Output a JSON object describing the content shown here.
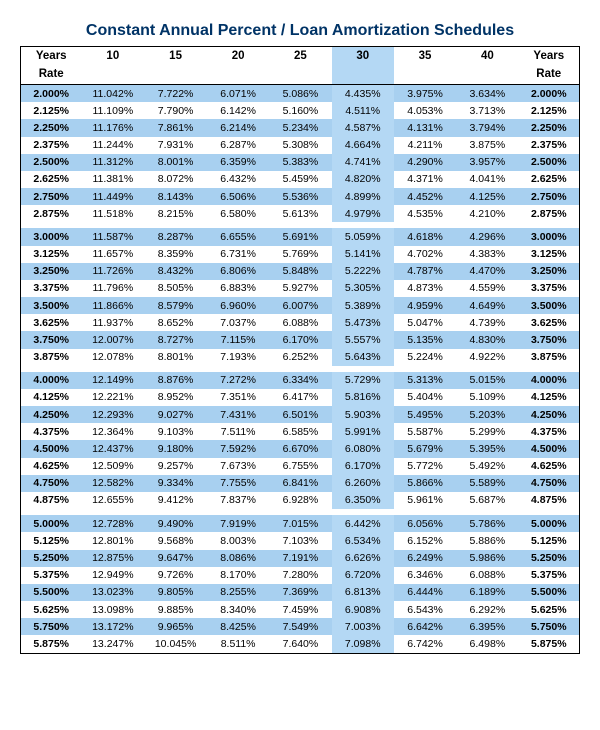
{
  "title": "Constant Annual Percent / Loan Amortization Schedules",
  "columns": [
    "Years",
    "10",
    "15",
    "20",
    "25",
    "30",
    "35",
    "40",
    "Years"
  ],
  "rate_label": "Rate",
  "highlight_column_index": 5,
  "colors": {
    "band": "#a8d0f0",
    "highlight": "#b4d8f4",
    "title": "#003366",
    "border": "#000000",
    "bg": "#ffffff"
  },
  "groups": [
    [
      {
        "rate": "2.000%",
        "v": [
          "11.042%",
          "7.722%",
          "6.071%",
          "5.086%",
          "4.435%",
          "3.975%",
          "3.634%"
        ]
      },
      {
        "rate": "2.125%",
        "v": [
          "11.109%",
          "7.790%",
          "6.142%",
          "5.160%",
          "4.511%",
          "4.053%",
          "3.713%"
        ]
      },
      {
        "rate": "2.250%",
        "v": [
          "11.176%",
          "7.861%",
          "6.214%",
          "5.234%",
          "4.587%",
          "4.131%",
          "3.794%"
        ]
      },
      {
        "rate": "2.375%",
        "v": [
          "11.244%",
          "7.931%",
          "6.287%",
          "5.308%",
          "4.664%",
          "4.211%",
          "3.875%"
        ]
      },
      {
        "rate": "2.500%",
        "v": [
          "11.312%",
          "8.001%",
          "6.359%",
          "5.383%",
          "4.741%",
          "4.290%",
          "3.957%"
        ]
      },
      {
        "rate": "2.625%",
        "v": [
          "11.381%",
          "8.072%",
          "6.432%",
          "5.459%",
          "4.820%",
          "4.371%",
          "4.041%"
        ]
      },
      {
        "rate": "2.750%",
        "v": [
          "11.449%",
          "8.143%",
          "6.506%",
          "5.536%",
          "4.899%",
          "4.452%",
          "4.125%"
        ]
      },
      {
        "rate": "2.875%",
        "v": [
          "11.518%",
          "8.215%",
          "6.580%",
          "5.613%",
          "4.979%",
          "4.535%",
          "4.210%"
        ]
      }
    ],
    [
      {
        "rate": "3.000%",
        "v": [
          "11.587%",
          "8.287%",
          "6.655%",
          "5.691%",
          "5.059%",
          "4.618%",
          "4.296%"
        ]
      },
      {
        "rate": "3.125%",
        "v": [
          "11.657%",
          "8.359%",
          "6.731%",
          "5.769%",
          "5.141%",
          "4.702%",
          "4.383%"
        ]
      },
      {
        "rate": "3.250%",
        "v": [
          "11.726%",
          "8.432%",
          "6.806%",
          "5.848%",
          "5.222%",
          "4.787%",
          "4.470%"
        ]
      },
      {
        "rate": "3.375%",
        "v": [
          "11.796%",
          "8.505%",
          "6.883%",
          "5.927%",
          "5.305%",
          "4.873%",
          "4.559%"
        ]
      },
      {
        "rate": "3.500%",
        "v": [
          "11.866%",
          "8.579%",
          "6.960%",
          "6.007%",
          "5.389%",
          "4.959%",
          "4.649%"
        ]
      },
      {
        "rate": "3.625%",
        "v": [
          "11.937%",
          "8.652%",
          "7.037%",
          "6.088%",
          "5.473%",
          "5.047%",
          "4.739%"
        ]
      },
      {
        "rate": "3.750%",
        "v": [
          "12.007%",
          "8.727%",
          "7.115%",
          "6.170%",
          "5.557%",
          "5.135%",
          "4.830%"
        ]
      },
      {
        "rate": "3.875%",
        "v": [
          "12.078%",
          "8.801%",
          "7.193%",
          "6.252%",
          "5.643%",
          "5.224%",
          "4.922%"
        ]
      }
    ],
    [
      {
        "rate": "4.000%",
        "v": [
          "12.149%",
          "8.876%",
          "7.272%",
          "6.334%",
          "5.729%",
          "5.313%",
          "5.015%"
        ]
      },
      {
        "rate": "4.125%",
        "v": [
          "12.221%",
          "8.952%",
          "7.351%",
          "6.417%",
          "5.816%",
          "5.404%",
          "5.109%"
        ]
      },
      {
        "rate": "4.250%",
        "v": [
          "12.293%",
          "9.027%",
          "7.431%",
          "6.501%",
          "5.903%",
          "5.495%",
          "5.203%"
        ]
      },
      {
        "rate": "4.375%",
        "v": [
          "12.364%",
          "9.103%",
          "7.511%",
          "6.585%",
          "5.991%",
          "5.587%",
          "5.299%"
        ]
      },
      {
        "rate": "4.500%",
        "v": [
          "12.437%",
          "9.180%",
          "7.592%",
          "6.670%",
          "6.080%",
          "5.679%",
          "5.395%"
        ]
      },
      {
        "rate": "4.625%",
        "v": [
          "12.509%",
          "9.257%",
          "7.673%",
          "6.755%",
          "6.170%",
          "5.772%",
          "5.492%"
        ]
      },
      {
        "rate": "4.750%",
        "v": [
          "12.582%",
          "9.334%",
          "7.755%",
          "6.841%",
          "6.260%",
          "5.866%",
          "5.589%"
        ]
      },
      {
        "rate": "4.875%",
        "v": [
          "12.655%",
          "9.412%",
          "7.837%",
          "6.928%",
          "6.350%",
          "5.961%",
          "5.687%"
        ]
      }
    ],
    [
      {
        "rate": "5.000%",
        "v": [
          "12.728%",
          "9.490%",
          "7.919%",
          "7.015%",
          "6.442%",
          "6.056%",
          "5.786%"
        ]
      },
      {
        "rate": "5.125%",
        "v": [
          "12.801%",
          "9.568%",
          "8.003%",
          "7.103%",
          "6.534%",
          "6.152%",
          "5.886%"
        ]
      },
      {
        "rate": "5.250%",
        "v": [
          "12.875%",
          "9.647%",
          "8.086%",
          "7.191%",
          "6.626%",
          "6.249%",
          "5.986%"
        ]
      },
      {
        "rate": "5.375%",
        "v": [
          "12.949%",
          "9.726%",
          "8.170%",
          "7.280%",
          "6.720%",
          "6.346%",
          "6.088%"
        ]
      },
      {
        "rate": "5.500%",
        "v": [
          "13.023%",
          "9.805%",
          "8.255%",
          "7.369%",
          "6.813%",
          "6.444%",
          "6.189%"
        ]
      },
      {
        "rate": "5.625%",
        "v": [
          "13.098%",
          "9.885%",
          "8.340%",
          "7.459%",
          "6.908%",
          "6.543%",
          "6.292%"
        ]
      },
      {
        "rate": "5.750%",
        "v": [
          "13.172%",
          "9.965%",
          "8.425%",
          "7.549%",
          "7.003%",
          "6.642%",
          "6.395%"
        ]
      },
      {
        "rate": "5.875%",
        "v": [
          "13.247%",
          "10.045%",
          "8.511%",
          "7.640%",
          "7.098%",
          "6.742%",
          "6.498%"
        ]
      }
    ]
  ]
}
